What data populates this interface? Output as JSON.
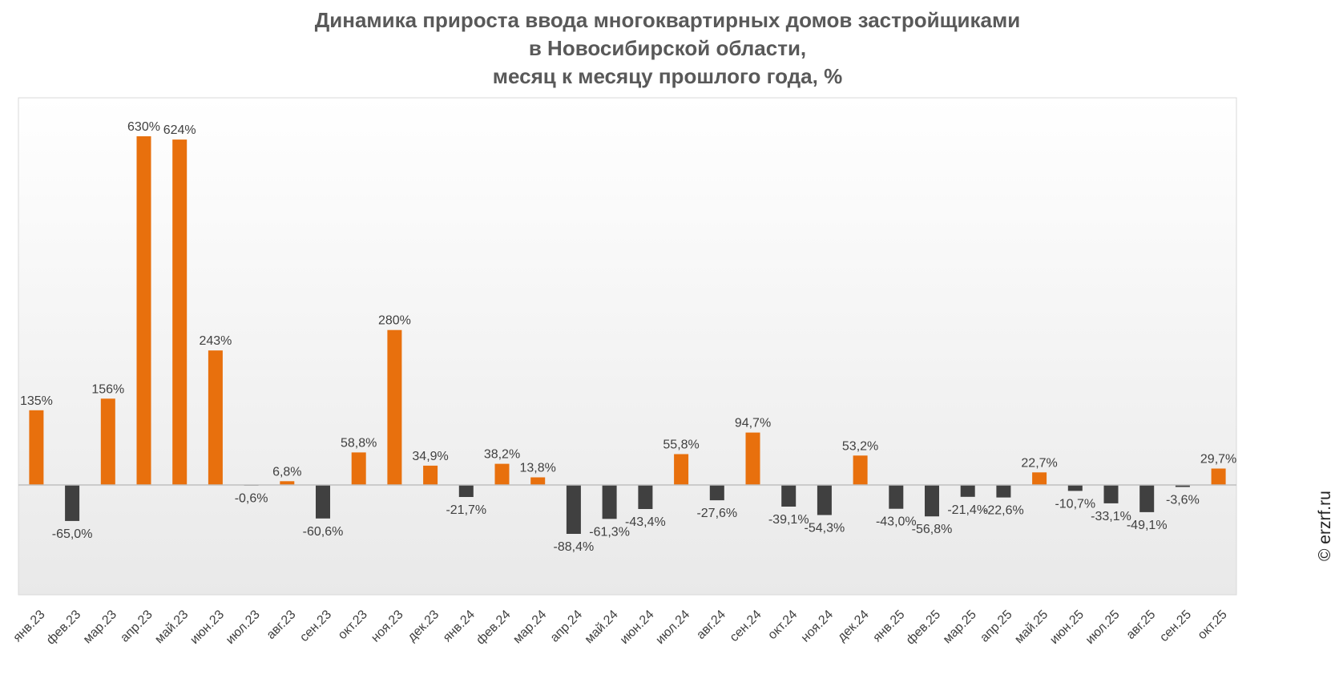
{
  "title_lines": [
    "Динамика прироста ввода многоквартирных домов застройщиками",
    "в Новосибирской области,",
    "месяц к месяцу прошлого года, %"
  ],
  "watermark": "© erzrf.ru",
  "colors": {
    "positive": "#E8700D",
    "negative": "#404040",
    "label": "#404040",
    "axis": "#BFBFBF",
    "title": "#595959"
  },
  "chart_data": {
    "type": "bar",
    "title": "Динамика прироста ввода многоквартирных домов застройщиками в Новосибирской области, месяц к месяцу прошлого года, %",
    "xlabel": "",
    "ylabel": "",
    "grid": false,
    "legend": "none",
    "categories": [
      "янв.23",
      "фев.23",
      "мар.23",
      "апр.23",
      "май.23",
      "июн.23",
      "июл.23",
      "авг.23",
      "сен.23",
      "окт.23",
      "ноя.23",
      "дек.23",
      "янв.24",
      "фев.24",
      "мар.24",
      "апр.24",
      "май.24",
      "июн.24",
      "июл.24",
      "авг.24",
      "сен.24",
      "окт.24",
      "ноя.24",
      "дек.24",
      "янв.25",
      "фев.25",
      "мар.25",
      "апр.25",
      "май.25",
      "июн.25",
      "июл.25",
      "авг.25",
      "сен.25",
      "окт.25"
    ],
    "values": [
      135,
      -65.0,
      156,
      630,
      624,
      243,
      -0.6,
      6.8,
      -60.6,
      58.8,
      280,
      34.9,
      -21.7,
      38.2,
      13.8,
      -88.4,
      -61.3,
      -43.4,
      55.8,
      -27.6,
      94.7,
      -39.1,
      -54.3,
      53.2,
      -43.0,
      -56.8,
      -21.4,
      -22.6,
      22.7,
      -10.7,
      -33.1,
      -49.1,
      -3.6,
      29.7
    ],
    "data_labels": [
      "135%",
      "-65,0%",
      "156%",
      "630%",
      "624%",
      "243%",
      "-0,6%",
      "6,8%",
      "-60,6%",
      "58,8%",
      "280%",
      "34,9%",
      "-21,7%",
      "38,2%",
      "13,8%",
      "-88,4%",
      "-61,3%",
      "-43,4%",
      "55,8%",
      "-27,6%",
      "94,7%",
      "-39,1%",
      "-54,3%",
      "53,2%",
      "-43,0%",
      "-56,8%",
      "-21,4%",
      "-22,6%",
      "22,7%",
      "-10,7%",
      "-33,1%",
      "-49,1%",
      "-3,6%",
      "29,7%"
    ]
  }
}
